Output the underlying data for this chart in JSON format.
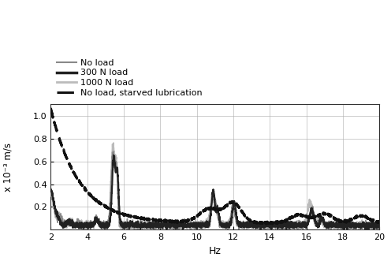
{
  "xlabel": "Hz",
  "ylabel": "x 10⁻³ m/s",
  "xlim": [
    2,
    20
  ],
  "ylim": [
    0,
    1.1
  ],
  "yticks": [
    0.2,
    0.4,
    0.6,
    0.8,
    1.0
  ],
  "xticks": [
    2,
    4,
    6,
    8,
    10,
    12,
    14,
    16,
    18,
    20
  ],
  "legend": [
    "No load",
    "300 N load",
    "1000 N load",
    "No load, starved lubrication"
  ],
  "colors": {
    "no_load": "#888888",
    "load_300": "#222222",
    "load_1000": "#bbbbbb",
    "starved": "#111111"
  },
  "background": "#ffffff"
}
